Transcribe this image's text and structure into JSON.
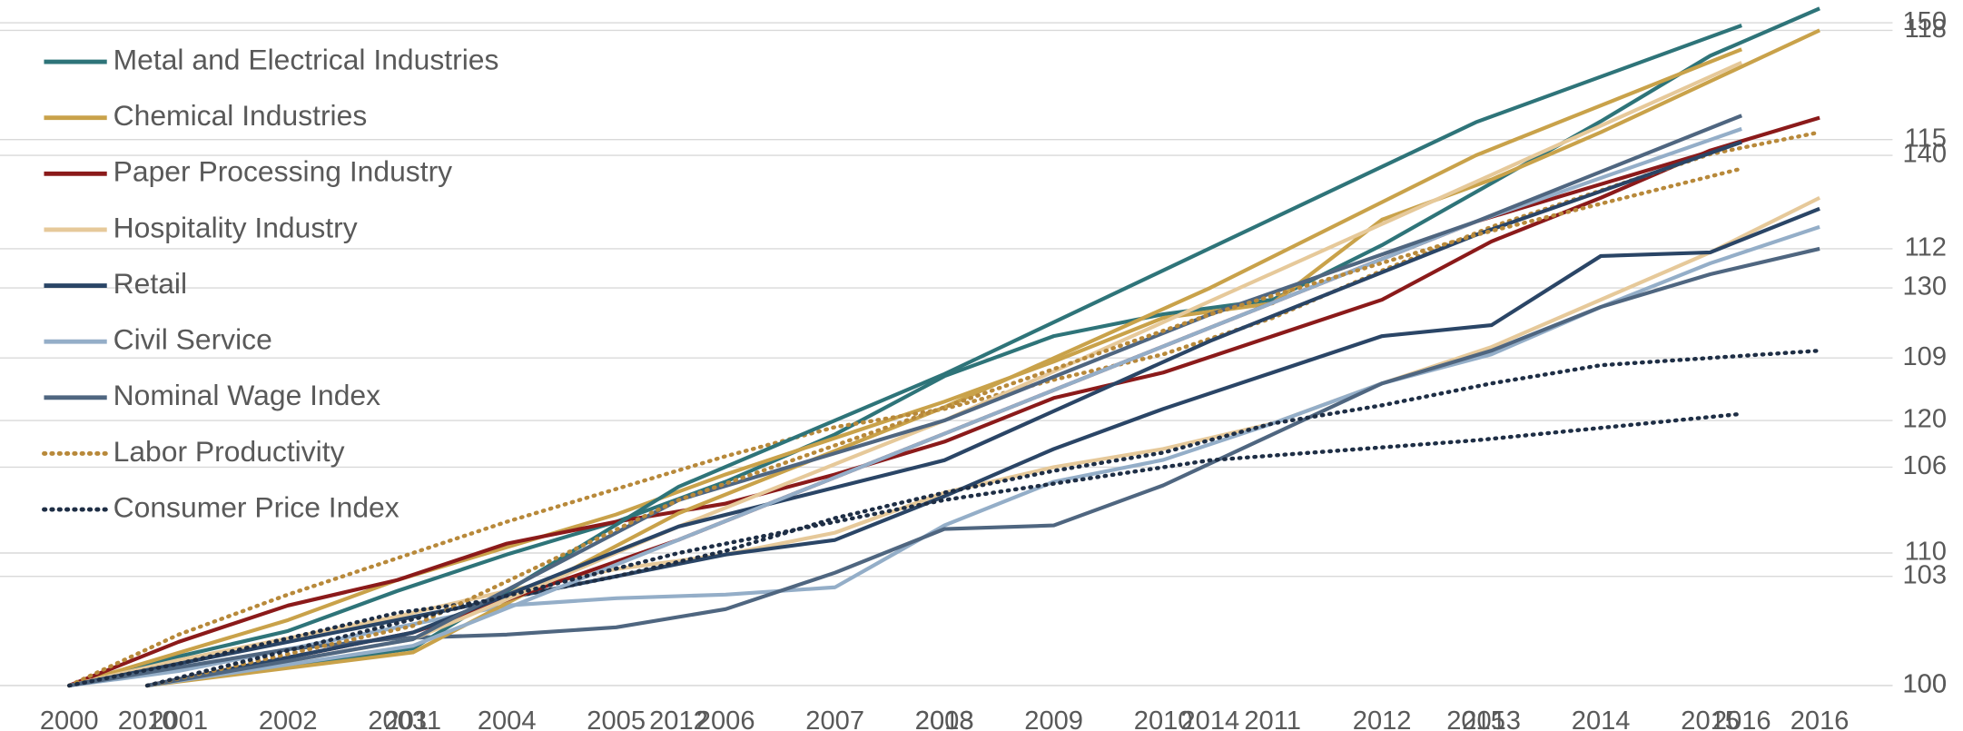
{
  "chart_data": [
    {
      "type": "line",
      "x": [
        2000,
        2001,
        2002,
        2003,
        2004,
        2005,
        2006,
        2007,
        2008,
        2009,
        2010,
        2011,
        2012,
        2013,
        2014,
        2015,
        2016
      ],
      "xlim": [
        2000,
        2016
      ],
      "ylim": [
        100,
        118
      ],
      "yticks": [
        100,
        103,
        106,
        109,
        112,
        115,
        118
      ],
      "grid": true,
      "legend": "upper left",
      "series": [
        {
          "name": "Metal and Electrical Industries",
          "color": "#2e7479",
          "style": "solid",
          "values": [
            100,
            100.8,
            101.5,
            102.6,
            103.6,
            104.5,
            105.6,
            106.9,
            108.5,
            109.6,
            110.2,
            110.6,
            112.1,
            113.8,
            115.5,
            117.3,
            118.6
          ]
        },
        {
          "name": "Chemical Industries",
          "color": "#c9a24a",
          "style": "solid",
          "values": [
            100,
            100.9,
            101.8,
            102.9,
            103.8,
            104.7,
            105.8,
            106.8,
            107.8,
            108.9,
            110.1,
            110.5,
            112.8,
            113.9,
            115.2,
            116.6,
            118.0
          ]
        },
        {
          "name": "Paper Processing Industry",
          "color": "#8b1a1a",
          "style": "solid",
          "values": [
            100,
            101.2,
            102.2,
            102.9,
            103.9,
            104.5,
            105.0,
            105.8,
            106.7,
            107.9,
            108.6,
            109.6,
            110.6,
            112.2,
            113.4,
            114.7,
            115.6
          ]
        },
        {
          "name": "Hospitality Industry",
          "color": "#e6c99a",
          "style": "solid",
          "values": [
            100,
            100.7,
            101.3,
            101.9,
            102.6,
            103.2,
            103.6,
            104.2,
            105.3,
            106.0,
            106.5,
            107.2,
            108.3,
            109.3,
            110.6,
            111.9,
            113.4
          ]
        },
        {
          "name": "Retail",
          "color": "#2a4566",
          "style": "solid",
          "values": [
            100,
            100.6,
            101.2,
            101.8,
            102.4,
            103.0,
            103.6,
            104.0,
            105.2,
            106.5,
            107.6,
            108.6,
            109.6,
            109.9,
            111.8,
            111.9,
            113.1
          ]
        },
        {
          "name": "Civil Service",
          "color": "#94aec8",
          "style": "solid",
          "values": [
            100,
            100.4,
            101.0,
            101.6,
            102.2,
            102.4,
            102.5,
            102.7,
            104.4,
            105.6,
            106.2,
            107.2,
            108.3,
            109.1,
            110.4,
            111.6,
            112.6
          ]
        },
        {
          "name": "Nominal Wage Index",
          "color": "#4f6680",
          "style": "solid",
          "values": [
            100,
            100.5,
            101.0,
            101.3,
            101.4,
            101.6,
            102.1,
            103.1,
            104.3,
            104.4,
            105.5,
            106.9,
            108.3,
            109.2,
            110.4,
            111.3,
            112.0
          ]
        },
        {
          "name": "Labor Productivity",
          "color": "#b8893a",
          "style": "dotted",
          "values": [
            100,
            101.4,
            102.5,
            103.5,
            104.5,
            105.4,
            106.3,
            107.1,
            107.6,
            108.4,
            109.1,
            110.1,
            111.4,
            112.6,
            113.6,
            114.6,
            115.2
          ]
        },
        {
          "name": "Consumer Price Index",
          "color": "#1e2e45",
          "style": "dotted",
          "values": [
            100,
            100.6,
            101.3,
            102.0,
            102.4,
            103.0,
            103.7,
            104.6,
            105.3,
            105.9,
            106.4,
            107.2,
            107.7,
            108.3,
            108.8,
            109.0,
            109.2
          ]
        }
      ]
    },
    {
      "type": "line",
      "x": [
        2010,
        2011,
        2012,
        2013,
        2014,
        2015,
        2016
      ],
      "xlim": [
        2010,
        2016
      ],
      "ylim": [
        100,
        150
      ],
      "yticks": [
        100,
        110,
        120,
        130,
        140,
        150
      ],
      "grid": true,
      "series": [
        {
          "color": "#2e7479",
          "style": "solid",
          "values": [
            100,
            102.8,
            115,
            123.5,
            133,
            142.5,
            149.8
          ]
        },
        {
          "color": "#c9a24a",
          "style": "solid",
          "values": [
            100,
            102.5,
            113,
            121,
            130,
            140,
            148
          ]
        },
        {
          "color": "#8b1a1a",
          "style": "solid",
          "values": [
            100,
            104,
            111,
            119,
            127,
            135,
            141
          ]
        },
        {
          "color": "#e6c99a",
          "style": "solid",
          "values": [
            100,
            103.5,
            112,
            120,
            129,
            138,
            147
          ]
        },
        {
          "color": "#2a4566",
          "style": "solid",
          "values": [
            100,
            104,
            112,
            117,
            126,
            134,
            141
          ]
        },
        {
          "color": "#94aec8",
          "style": "solid",
          "values": [
            100,
            103,
            111,
            119,
            127,
            135,
            142
          ]
        },
        {
          "color": "#4f6680",
          "style": "solid",
          "values": [
            100,
            103.5,
            114,
            120,
            128,
            135,
            143
          ]
        },
        {
          "color": "#b8893a",
          "style": "dotted",
          "values": [
            100,
            104.5,
            114,
            121,
            128,
            134,
            139
          ]
        },
        {
          "color": "#1e2e45",
          "style": "dotted",
          "values": [
            100,
            105,
            110,
            114,
            117,
            118.5,
            120.5
          ]
        }
      ]
    }
  ]
}
